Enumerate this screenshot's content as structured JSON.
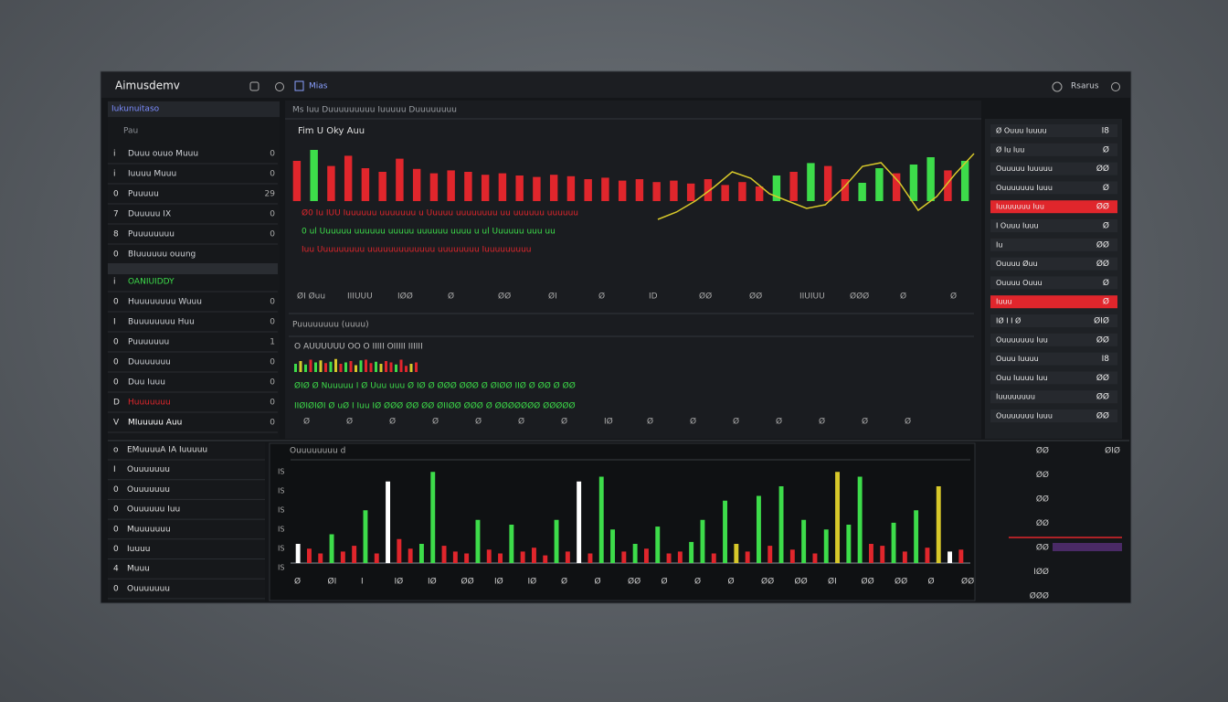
{
  "window": {
    "title": "Aimusdemv",
    "tab": "Mias",
    "user": "Rsarus"
  },
  "sidebar": {
    "header": "Iukunuitaso",
    "filter": "Pau",
    "items": [
      {
        "num": "i",
        "label": "Duuu ouuo Muuu",
        "badge": "0",
        "color": "#d0d3d8"
      },
      {
        "num": "i",
        "label": "Iuuuu Muuu",
        "badge": "0",
        "color": "#d0d3d8"
      },
      {
        "num": "0",
        "label": "Puuuuu",
        "badge": "29",
        "color": "#d0d3d8"
      },
      {
        "num": "7",
        "label": "Duuuuu IX",
        "badge": "0",
        "color": "#d0d3d8"
      },
      {
        "num": "8",
        "label": "Puuuuuuuu",
        "badge": "0",
        "color": "#d0d3d8"
      },
      {
        "num": "0",
        "label": "BIuuuuuu ouung",
        "badge": "",
        "color": "#d0d3d8"
      },
      {
        "num": "i",
        "label": "OANIUIDDY",
        "badge": "",
        "color": "#3ddc4a"
      },
      {
        "num": "0",
        "label": "Huuuuuuuu Wuuu",
        "badge": "0",
        "color": "#d0d3d8"
      },
      {
        "num": "I",
        "label": "Buuuuuuuu Huu",
        "badge": "0",
        "color": "#d0d3d8"
      },
      {
        "num": "0",
        "label": "Puuuuuuu",
        "badge": "1",
        "color": "#d0d3d8"
      },
      {
        "num": "0",
        "label": "Duuuuuuu",
        "badge": "0",
        "color": "#d0d3d8"
      },
      {
        "num": "0",
        "label": "Duu Iuuu",
        "badge": "0",
        "color": "#d0d3d8"
      },
      {
        "num": "D",
        "label": "Huuuuuuu",
        "badge": "0",
        "color": "#e0262c"
      },
      {
        "num": "V",
        "label": "MIuuuuu Auu",
        "badge": "0",
        "color": "#ffffff"
      }
    ]
  },
  "main": {
    "toolbar": "Ms Iuu Duuuuuuuuu Iuuuuu Duuuuuuuu",
    "chart_title": "Fim U Oky Auu",
    "bars": [
      55,
      70,
      48,
      62,
      45,
      40,
      58,
      44,
      38,
      42,
      40,
      36,
      38,
      35,
      33,
      36,
      34,
      30,
      32,
      28,
      30,
      26,
      28,
      24,
      30,
      22,
      26,
      20,
      35,
      40,
      52,
      48,
      30,
      25,
      45,
      38,
      50,
      60,
      42,
      55
    ],
    "bar_colors": [
      "#e0262c",
      "#3ddc4a",
      "#e0262c",
      "#e0262c",
      "#e0262c",
      "#e0262c",
      "#e0262c",
      "#e0262c",
      "#e0262c",
      "#e0262c",
      "#e0262c",
      "#e0262c",
      "#e0262c",
      "#e0262c",
      "#e0262c",
      "#e0262c",
      "#e0262c",
      "#e0262c",
      "#e0262c",
      "#e0262c",
      "#e0262c",
      "#e0262c",
      "#e0262c",
      "#e0262c",
      "#e0262c",
      "#e0262c",
      "#e0262c",
      "#e0262c",
      "#3ddc4a",
      "#e0262c",
      "#3ddc4a",
      "#e0262c",
      "#e0262c",
      "#3ddc4a",
      "#3ddc4a",
      "#e0262c",
      "#3ddc4a",
      "#3ddc4a",
      "#e0262c",
      "#3ddc4a"
    ],
    "line": [
      10,
      18,
      30,
      45,
      62,
      55,
      38,
      30,
      22,
      26,
      45,
      68,
      72,
      50,
      20,
      35,
      60,
      82
    ],
    "line_color": "#d7c82a",
    "ticker_lines": [
      {
        "text": "Ø0 Iu IUU Iuuuuuu uuuuuuu u Uuuuu uuuuuuuu uu uuuuuu uuuuuu",
        "color": "#e0262c"
      },
      {
        "text": "0 ul Uuuuuu uuuuuu uuuuu uuuuuu uuuu u ul Uuuuuu uuu uu",
        "color": "#3ddc4a"
      },
      {
        "text": "Iuu Uuuuuuuuu uuuuuuuuuuuuu uuuuuuuu Iuuuuuuuuu",
        "color": "#e0262c"
      }
    ],
    "axis_row": [
      "ØI Øuu",
      "IIIUUU",
      "IØØ",
      "Ø",
      "ØØ",
      "ØI",
      "Ø",
      "ID",
      "ØØ",
      "ØØ",
      "IIUIUU",
      "ØØØ",
      "Ø",
      "Ø"
    ],
    "lower_title": "Puuuuuuuu (uuuu)",
    "lower_header": "O AUUUUUU OO O IIIII OIIIII IIIIII",
    "mini_bars": [
      60,
      80,
      55,
      90,
      70,
      85,
      65,
      75,
      95,
      60,
      70,
      80,
      50,
      85,
      90,
      65,
      75,
      60,
      80,
      70,
      55,
      90,
      45,
      60,
      70
    ],
    "mini_colors": [
      "#3ddc4a",
      "#d7c82a",
      "#3ddc4a",
      "#e0262c",
      "#3ddc4a",
      "#d7c82a",
      "#e0262c",
      "#3ddc4a",
      "#d7c82a",
      "#e0262c",
      "#3ddc4a",
      "#e0262c",
      "#d7c82a",
      "#3ddc4a",
      "#e0262c",
      "#e0262c",
      "#3ddc4a",
      "#d7c82a",
      "#e0262c",
      "#e0262c",
      "#3ddc4a",
      "#e0262c",
      "#e0262c",
      "#d7c82a",
      "#e0262c"
    ],
    "lower_lines": [
      {
        "text": "ØIØ  Ø Nuuuuu  I  Ø  Uuu uuu  Ø  IØ  Ø  ØØØ  ØØØ  Ø  ØIØØ  IIØ  Ø  ØØ Ø  ØØ",
        "color": "#3ddc4a"
      },
      {
        "text": "IIØIØIØI  Ø uØ  I Iuu IØ  ØØØ  ØØ  ØØ  ØIIØØ  ØØØ  Ø  ØØØØØØØ  ØØØØØ",
        "color": "#3ddc4a"
      }
    ],
    "lower_axis": [
      "Ø",
      "Ø",
      "Ø",
      "Ø",
      "Ø",
      "Ø",
      "Ø",
      "IØ",
      "Ø",
      "Ø",
      "Ø",
      "Ø",
      "Ø",
      "Ø",
      "Ø"
    ]
  },
  "right_panel": {
    "rows": [
      {
        "label": "Ø Ouuu Iuuuu",
        "value": "I8",
        "alert": false
      },
      {
        "label": "Ø Iu Iuu",
        "value": "Ø",
        "alert": false
      },
      {
        "label": "Ouuuuu Iuuuuu",
        "value": "ØØ",
        "alert": false
      },
      {
        "label": "Ouuuuuuu Iuuu",
        "value": "Ø",
        "alert": false
      },
      {
        "label": "Iuuuuuuu Iuu",
        "value": "ØØ",
        "alert": true
      },
      {
        "label": "I Ouuu Iuuu",
        "value": "Ø",
        "alert": false
      },
      {
        "label": "Iu",
        "value": "ØØ",
        "alert": false
      },
      {
        "label": "Ouuuu  Øuu",
        "value": "ØØ",
        "alert": false
      },
      {
        "label": "Ouuuu Ouuu",
        "value": "Ø",
        "alert": false
      },
      {
        "label": "Iuuu",
        "value": "Ø",
        "alert": true
      },
      {
        "label": "IØ I I Ø",
        "value": "ØIØ",
        "alert": false
      },
      {
        "label": "Ouuuuuuu Iuu",
        "value": "ØØ",
        "alert": false
      },
      {
        "label": "Ouuu Iuuuu",
        "value": "I8",
        "alert": false
      },
      {
        "label": "Ouu Iuuuu Iuu",
        "value": "ØØ",
        "alert": false
      },
      {
        "label": "Iuuuuuuuu",
        "value": "ØØ",
        "alert": false
      },
      {
        "label": "Ouuuuuuu Iuuu",
        "value": "ØØ",
        "alert": false
      }
    ]
  },
  "bottom_list": {
    "items": [
      {
        "num": "o",
        "label": "EMuuuuA IA Iuuuuu"
      },
      {
        "num": "I",
        "label": "Ouuuuuuu"
      },
      {
        "num": "0",
        "label": "Ouuuuuuu"
      },
      {
        "num": "0",
        "label": "Ouuuuuu Iuu"
      },
      {
        "num": "0",
        "label": "Muuuuuuu"
      },
      {
        "num": "0",
        "label": "Iuuuu"
      },
      {
        "num": "4",
        "label": "Muuu"
      },
      {
        "num": "0",
        "label": "Ouuuuuuu"
      }
    ]
  },
  "volume_chart": {
    "title": "Ouuuuuuuu  d",
    "values": [
      20,
      15,
      10,
      30,
      12,
      18,
      55,
      10,
      85,
      25,
      15,
      20,
      95,
      18,
      12,
      10,
      45,
      14,
      10,
      40,
      12,
      16,
      8,
      45,
      12,
      85,
      10,
      90,
      35,
      12,
      20,
      15,
      38,
      10,
      12,
      22,
      45,
      10,
      65,
      20,
      12,
      70,
      18,
      80,
      14,
      45,
      10,
      35,
      95,
      40,
      90,
      20,
      18,
      42,
      12,
      55,
      16,
      80,
      12,
      14
    ],
    "colors": [
      "#ffffff",
      "#e0262c",
      "#e0262c",
      "#3ddc4a",
      "#e0262c",
      "#e0262c",
      "#3ddc4a",
      "#e0262c",
      "#ffffff",
      "#e0262c",
      "#e0262c",
      "#3ddc4a",
      "#3ddc4a",
      "#e0262c",
      "#e0262c",
      "#e0262c",
      "#3ddc4a",
      "#e0262c",
      "#e0262c",
      "#3ddc4a",
      "#e0262c",
      "#e0262c",
      "#e0262c",
      "#3ddc4a",
      "#e0262c",
      "#ffffff",
      "#e0262c",
      "#3ddc4a",
      "#3ddc4a",
      "#e0262c",
      "#3ddc4a",
      "#e0262c",
      "#3ddc4a",
      "#e0262c",
      "#e0262c",
      "#3ddc4a",
      "#3ddc4a",
      "#e0262c",
      "#3ddc4a",
      "#d7c82a",
      "#e0262c",
      "#3ddc4a",
      "#e0262c",
      "#3ddc4a",
      "#e0262c",
      "#3ddc4a",
      "#e0262c",
      "#3ddc4a",
      "#d7c82a",
      "#3ddc4a",
      "#3ddc4a",
      "#e0262c",
      "#e0262c",
      "#3ddc4a",
      "#e0262c",
      "#3ddc4a",
      "#e0262c",
      "#d7c82a",
      "#ffffff",
      "#e0262c"
    ],
    "y_labels": [
      "IS",
      "IS",
      "IS",
      "IS",
      "IS",
      "IS"
    ],
    "x_labels": [
      "Ø",
      "ØI",
      "I",
      "IØ",
      "IØ",
      "ØØ",
      "IØ",
      "IØ",
      "Ø",
      "Ø",
      "ØØ",
      "Ø",
      "Ø",
      "Ø",
      "ØØ",
      "ØØ",
      "ØI",
      "ØØ",
      "ØØ",
      "Ø",
      "ØØ"
    ]
  },
  "bottom_right": {
    "rows": [
      "ØØ",
      "ØØ",
      "ØØ",
      "ØØ",
      "ØØ",
      "IØØ",
      "ØØØ"
    ],
    "top_right": "ØIØ"
  }
}
